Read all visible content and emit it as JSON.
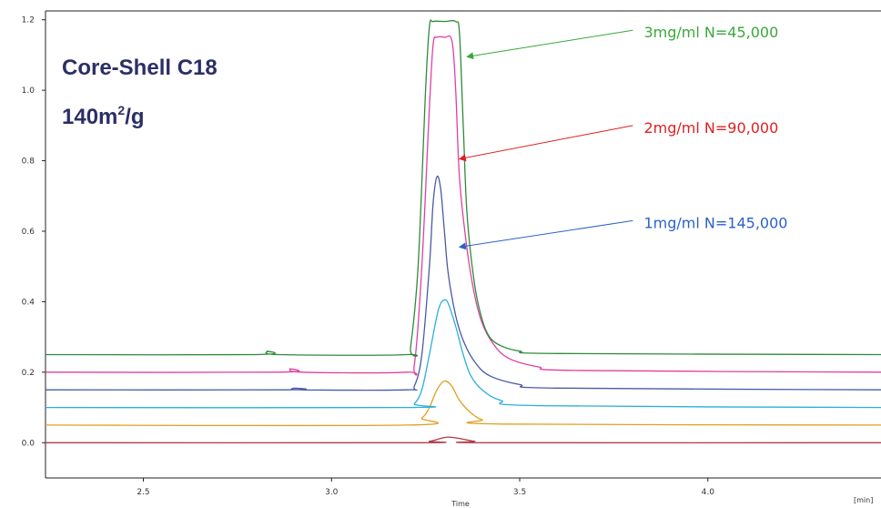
{
  "chart_data": {
    "type": "line",
    "title_line1": "Core-Shell C18",
    "title_line2_base": "140m",
    "title_line2_sup": "2",
    "title_line2_tail": "/g",
    "xlabel": "Time",
    "xunit": "[min]",
    "ylabel": "",
    "xlim": [
      2.24,
      4.46
    ],
    "ylim": [
      -0.1,
      1.225
    ],
    "xticks": [
      {
        "value": 2.5,
        "label": "2.5"
      },
      {
        "value": 3.0,
        "label": "3.0"
      },
      {
        "value": 3.5,
        "label": "3.5"
      },
      {
        "value": 4.0,
        "label": "4.0"
      }
    ],
    "yticks": [
      {
        "value": 0.0,
        "label": "0.0"
      },
      {
        "value": 0.2,
        "label": "0.2"
      },
      {
        "value": 0.4,
        "label": "0.4"
      },
      {
        "value": 0.6,
        "label": "0.6"
      },
      {
        "value": 0.8,
        "label": "0.8"
      },
      {
        "value": 1.0,
        "label": "1.0"
      },
      {
        "value": 1.2,
        "label": "1.2"
      }
    ],
    "series": [
      {
        "color": "#b03a4a",
        "baseline": 0.0,
        "x": [
          2.24,
          3.22,
          3.26,
          3.29,
          3.31,
          3.34,
          3.38,
          3.42,
          4.46
        ],
        "y": [
          0.0,
          0.0,
          0.004,
          0.012,
          0.016,
          0.012,
          0.004,
          0.0,
          0.0
        ]
      },
      {
        "color": "#e0a020",
        "baseline": 0.05,
        "x": [
          2.24,
          3.2,
          3.24,
          3.26,
          3.28,
          3.3,
          3.32,
          3.34,
          3.37,
          3.4,
          3.45,
          4.46
        ],
        "y": [
          0.05,
          0.05,
          0.07,
          0.1,
          0.15,
          0.175,
          0.16,
          0.12,
          0.085,
          0.065,
          0.053,
          0.05
        ]
      },
      {
        "color": "#2aafdc",
        "baseline": 0.1,
        "x": [
          2.24,
          3.2,
          3.22,
          3.24,
          3.26,
          3.28,
          3.29,
          3.3,
          3.31,
          3.33,
          3.35,
          3.37,
          3.4,
          3.45,
          3.55,
          4.46
        ],
        "y": [
          0.1,
          0.1,
          0.11,
          0.15,
          0.25,
          0.36,
          0.395,
          0.405,
          0.395,
          0.33,
          0.25,
          0.19,
          0.15,
          0.12,
          0.105,
          0.1
        ]
      },
      {
        "color": "#4a5aa6",
        "baseline": 0.15,
        "x": [
          2.24,
          2.88,
          2.9,
          2.92,
          3.2,
          3.22,
          3.24,
          3.26,
          3.27,
          3.28,
          3.29,
          3.3,
          3.31,
          3.33,
          3.35,
          3.38,
          3.42,
          3.5,
          3.6,
          4.46
        ],
        "y": [
          0.15,
          0.15,
          0.155,
          0.15,
          0.15,
          0.16,
          0.25,
          0.5,
          0.68,
          0.755,
          0.72,
          0.6,
          0.48,
          0.36,
          0.29,
          0.23,
          0.19,
          0.165,
          0.155,
          0.15
        ]
      },
      {
        "color": "#e040a0",
        "baseline": 0.2,
        "x": [
          2.24,
          2.86,
          2.89,
          2.92,
          3.2,
          3.22,
          3.24,
          3.26,
          3.27,
          3.28,
          3.3,
          3.32,
          3.33,
          3.34,
          3.36,
          3.38,
          3.4,
          3.43,
          3.47,
          3.55,
          3.65,
          4.46
        ],
        "y": [
          0.2,
          0.2,
          0.21,
          0.2,
          0.2,
          0.22,
          0.5,
          0.95,
          1.13,
          1.15,
          1.15,
          1.14,
          1.0,
          0.75,
          0.55,
          0.42,
          0.34,
          0.28,
          0.24,
          0.215,
          0.205,
          0.2
        ]
      },
      {
        "color": "#2e8b3a",
        "baseline": 0.25,
        "x": [
          2.24,
          2.8,
          2.83,
          2.86,
          3.2,
          3.21,
          3.23,
          3.25,
          3.26,
          3.27,
          3.3,
          3.33,
          3.34,
          3.35,
          3.36,
          3.38,
          3.4,
          3.42,
          3.45,
          3.5,
          3.6,
          4.46
        ],
        "y": [
          0.25,
          0.25,
          0.26,
          0.25,
          0.25,
          0.27,
          0.5,
          1.0,
          1.18,
          1.195,
          1.195,
          1.195,
          1.16,
          0.9,
          0.65,
          0.45,
          0.35,
          0.3,
          0.275,
          0.26,
          0.253,
          0.25
        ]
      }
    ],
    "annotations": [
      {
        "text": "3mg/ml  N=45,000",
        "color": "#3aa83a",
        "text_x": 3.83,
        "text_y": 1.165,
        "from_x": 3.82,
        "from_y": 1.17,
        "to_x": 3.36,
        "to_y": 1.095
      },
      {
        "text": "2mg/ml  N=90,000",
        "color": "#e02020",
        "text_x": 3.83,
        "text_y": 0.895,
        "from_x": 3.82,
        "from_y": 0.9,
        "to_x": 3.34,
        "to_y": 0.805
      },
      {
        "text": "1mg/ml  N=145,000",
        "color": "#2a62c8",
        "text_x": 3.83,
        "text_y": 0.625,
        "from_x": 3.82,
        "from_y": 0.63,
        "to_x": 3.34,
        "to_y": 0.555
      }
    ],
    "grid": false,
    "legend": "none"
  }
}
